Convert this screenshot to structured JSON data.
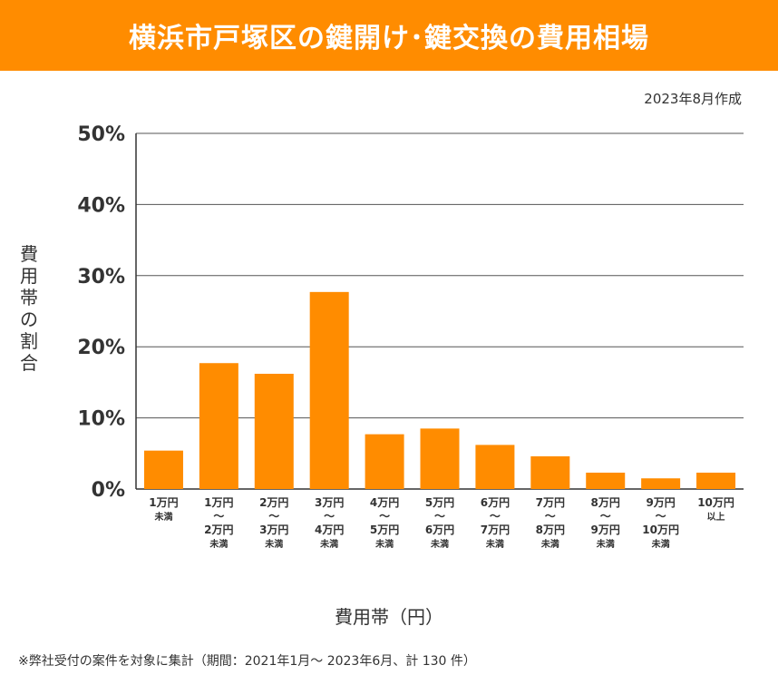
{
  "header": {
    "title": "横浜市戸塚区の鍵開け･鍵交換の費用相場"
  },
  "date_note": "2023年8月作成",
  "footnote": "※弊社受付の案件を対象に集計（期間：2021年1月～ 2023年6月、計 130 件）",
  "colors": {
    "bar": "#FF8C00",
    "header": "#FF8C00",
    "grid": "#555555"
  },
  "chart_data": {
    "type": "bar",
    "title": "横浜市戸塚区の鍵開け･鍵交換の費用相場",
    "xlabel": "費用帯（円）",
    "ylabel": "費用帯の割合",
    "ylim": [
      0,
      50
    ],
    "yticks": [
      "0%",
      "10%",
      "20%",
      "30%",
      "40%",
      "50%"
    ],
    "grid": true,
    "categories": [
      [
        "1万円",
        "未満"
      ],
      [
        "1万円",
        "～",
        "2万円",
        "未満"
      ],
      [
        "2万円",
        "～",
        "3万円",
        "未満"
      ],
      [
        "3万円",
        "～",
        "4万円",
        "未満"
      ],
      [
        "4万円",
        "～",
        "5万円",
        "未満"
      ],
      [
        "5万円",
        "～",
        "6万円",
        "未満"
      ],
      [
        "6万円",
        "～",
        "7万円",
        "未満"
      ],
      [
        "7万円",
        "～",
        "8万円",
        "未満"
      ],
      [
        "8万円",
        "～",
        "9万円",
        "未満"
      ],
      [
        "9万円",
        "～",
        "10万円",
        "未満"
      ],
      [
        "10万円",
        "以上"
      ]
    ],
    "values": [
      5.4,
      17.7,
      16.2,
      27.7,
      7.7,
      8.5,
      6.2,
      4.6,
      2.3,
      1.5,
      2.3
    ]
  }
}
